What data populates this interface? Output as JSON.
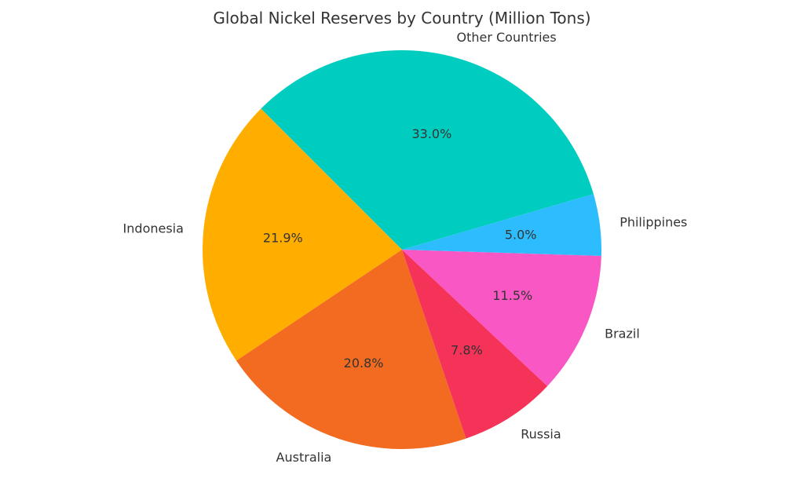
{
  "chart_data": {
    "type": "pie",
    "title": "Global Nickel Reserves by Country (Million Tons)",
    "start_angle_deg": 135,
    "direction": "counterclockwise",
    "slices": [
      {
        "label": "Indonesia",
        "value": 21.9,
        "pct_label": "21.9%",
        "color": "#FFAE00"
      },
      {
        "label": "Australia",
        "value": 20.8,
        "pct_label": "20.8%",
        "color": "#F26B21"
      },
      {
        "label": "Russia",
        "value": 7.8,
        "pct_label": "7.8%",
        "color": "#F53257"
      },
      {
        "label": "Brazil",
        "value": 11.5,
        "pct_label": "11.5%",
        "color": "#F957C4"
      },
      {
        "label": "Philippines",
        "value": 5.0,
        "pct_label": "5.0%",
        "color": "#2DBDFF"
      },
      {
        "label": "Other Countries",
        "value": 33.0,
        "pct_label": "33.0%",
        "color": "#00CDC0"
      }
    ]
  }
}
